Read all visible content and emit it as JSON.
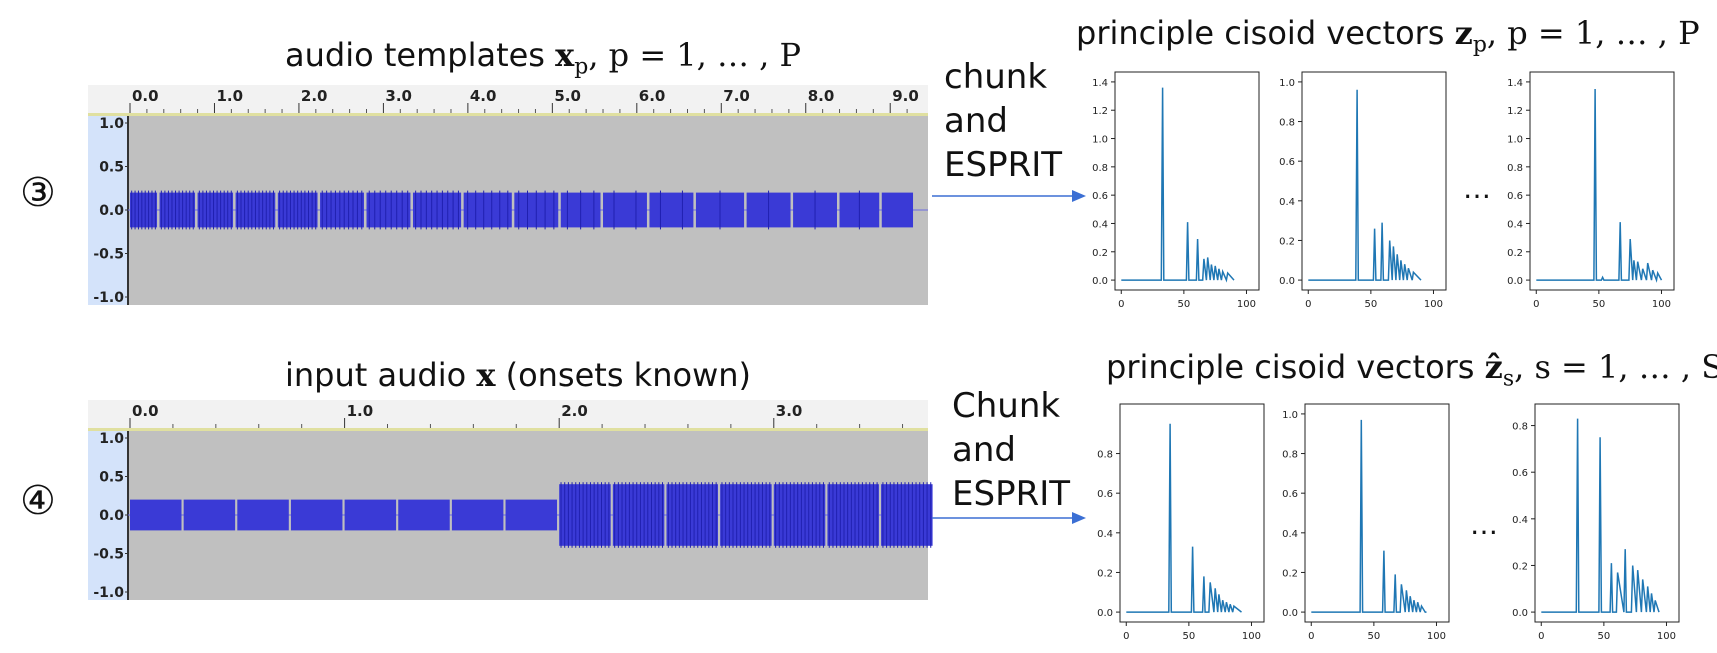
{
  "row1": {
    "step": "③",
    "left_title": {
      "text": "audio templates ",
      "vec": "x",
      "sub": "p",
      "rest": ", p = 1, … , P"
    },
    "process_lines": [
      "chunk",
      "and",
      "ESPRIT"
    ],
    "right_title": {
      "text": "principle cisoid vectors ",
      "vec": "z",
      "sub": "p",
      "rest": ", p = 1, … , P"
    },
    "timeline": {
      "ticks": [
        "0.0",
        "1.0",
        "2.0",
        "3.0",
        "4.0",
        "5.0",
        "6.0",
        "7.0",
        "8.0",
        "9.0"
      ],
      "xmax": 9.4
    },
    "amp_ticks": [
      "1.0",
      "0.5",
      "0.0",
      "-0.5",
      "-1.0"
    ],
    "ellipsis": "…",
    "charts": [
      {
        "ylim": [
          0,
          1.4
        ],
        "yticks": [
          "0.0",
          "0.2",
          "0.4",
          "0.6",
          "0.8",
          "1.0",
          "1.2",
          "1.4"
        ],
        "xticks": [
          "0",
          "50",
          "100"
        ]
      },
      {
        "ylim": [
          0,
          1.0
        ],
        "yticks": [
          "0.0",
          "0.2",
          "0.4",
          "0.6",
          "0.8",
          "1.0"
        ],
        "xticks": [
          "0",
          "50",
          "100"
        ]
      },
      {
        "ylim": [
          0,
          1.4
        ],
        "yticks": [
          "0.0",
          "0.2",
          "0.4",
          "0.6",
          "0.8",
          "1.0",
          "1.2",
          "1.4"
        ],
        "xticks": [
          "0",
          "50",
          "100"
        ]
      }
    ]
  },
  "row2": {
    "step": "④",
    "left_title": {
      "text": "input audio ",
      "vec": "x",
      "rest": " (onsets known)"
    },
    "process_lines": [
      "Chunk",
      "and",
      "ESPRIT"
    ],
    "right_title": {
      "text": "principle cisoid vectors ",
      "vec": "ẑ",
      "sub": "s",
      "rest": ", s = 1, … , S"
    },
    "timeline": {
      "ticks": [
        "0.0",
        "1.0",
        "2.0",
        "3.0"
      ],
      "xmax": 3.7
    },
    "amp_ticks": [
      "1.0",
      "0.5",
      "0.0",
      "-0.5",
      "-1.0"
    ],
    "ellipsis": "…",
    "charts": [
      {
        "ylim": [
          0,
          1.0
        ],
        "yticks": [
          "0.0",
          "0.2",
          "0.4",
          "0.6",
          "0.8"
        ],
        "xticks": [
          "0",
          "50",
          "100"
        ]
      },
      {
        "ylim": [
          0,
          1.0
        ],
        "yticks": [
          "0.0",
          "0.2",
          "0.4",
          "0.6",
          "0.8",
          "1.0"
        ],
        "xticks": [
          "0",
          "50",
          "100"
        ]
      },
      {
        "ylim": [
          0,
          0.85
        ],
        "yticks": [
          "0.0",
          "0.2",
          "0.4",
          "0.6",
          "0.8"
        ],
        "xticks": [
          "0",
          "50",
          "100"
        ]
      }
    ]
  },
  "colors": {
    "wave": "#3a3ad6",
    "track_bg": "#c0c0c0",
    "ruler_bg": "#f2f2f2",
    "amp_bg": "#d4e3fa",
    "plot_line": "#1f77b4",
    "arrow": "#3b6fd4"
  },
  "chart_data": [
    {
      "type": "line",
      "x": [
        0,
        32,
        33,
        34,
        52,
        53,
        54,
        60,
        61,
        62,
        65,
        66,
        68,
        69,
        71,
        72,
        74,
        75,
        77,
        78,
        80,
        81,
        84,
        85,
        90
      ],
      "y": [
        0,
        0,
        1.36,
        0,
        0,
        0.41,
        0,
        0,
        0.29,
        0,
        0,
        0.15,
        0,
        0.16,
        0,
        0.11,
        0,
        0.1,
        0,
        0.08,
        0,
        0.06,
        0,
        0.05,
        0
      ],
      "xlim": [
        -5,
        110
      ],
      "ylim": [
        0,
        1.4
      ]
    },
    {
      "type": "line",
      "x": [
        0,
        38,
        39,
        40,
        52,
        53,
        54,
        58,
        59,
        60,
        64,
        65,
        67,
        68,
        70,
        71,
        73,
        74,
        76,
        77,
        79,
        80,
        83,
        84,
        90
      ],
      "y": [
        0,
        0,
        0.96,
        0,
        0,
        0.26,
        0,
        0,
        0.29,
        0,
        0,
        0.2,
        0,
        0.17,
        0,
        0.13,
        0,
        0.1,
        0,
        0.08,
        0,
        0.06,
        0,
        0.04,
        0
      ],
      "xlim": [
        -5,
        110
      ],
      "ylim": [
        0,
        1.0
      ]
    },
    {
      "type": "line",
      "x": [
        0,
        46,
        47,
        48,
        52,
        53,
        54,
        66,
        67,
        68,
        74,
        75,
        77,
        78,
        80,
        81,
        84,
        85,
        88,
        89,
        92,
        93,
        96,
        97,
        100
      ],
      "y": [
        0,
        0,
        1.35,
        0,
        0,
        0.02,
        0,
        0,
        0.41,
        0,
        0,
        0.29,
        0,
        0.14,
        0,
        0.13,
        0,
        0.08,
        0,
        0.12,
        0,
        0.07,
        0,
        0.05,
        0
      ],
      "xlim": [
        -5,
        110
      ],
      "ylim": [
        0,
        1.4
      ]
    },
    {
      "type": "line",
      "x": [
        0,
        34,
        35,
        36,
        52,
        53,
        54,
        61,
        62,
        63,
        66,
        67,
        70,
        71,
        73,
        74,
        76,
        77,
        79,
        80,
        82,
        83,
        85,
        86,
        92
      ],
      "y": [
        0,
        0,
        0.95,
        0,
        0,
        0.33,
        0,
        0,
        0.18,
        0,
        0,
        0.15,
        0,
        0.12,
        0,
        0.09,
        0,
        0.06,
        0,
        0.05,
        0,
        0.04,
        0,
        0.03,
        0
      ],
      "xlim": [
        -5,
        110
      ],
      "ylim": [
        0,
        1.0
      ]
    },
    {
      "type": "line",
      "x": [
        0,
        39,
        40,
        41,
        57,
        58,
        59,
        66,
        67,
        68,
        71,
        72,
        75,
        76,
        78,
        79,
        81,
        82,
        84,
        85,
        87,
        88,
        91,
        92
      ],
      "y": [
        0,
        0,
        0.97,
        0,
        0,
        0.31,
        0,
        0,
        0.19,
        0,
        0,
        0.14,
        0,
        0.11,
        0,
        0.08,
        0,
        0.06,
        0,
        0.05,
        0,
        0.03,
        0,
        0
      ],
      "xlim": [
        -5,
        110
      ],
      "ylim": [
        0,
        1.0
      ]
    },
    {
      "type": "line",
      "x": [
        0,
        28,
        29,
        30,
        46,
        47,
        48,
        55,
        56,
        57,
        60,
        61,
        66,
        67,
        68,
        72,
        73,
        76,
        77,
        80,
        81,
        84,
        85,
        87,
        88,
        90,
        91,
        94
      ],
      "y": [
        0,
        0,
        0.83,
        0,
        0,
        0.75,
        0,
        0,
        0.21,
        0,
        0,
        0.17,
        0,
        0.27,
        0,
        0,
        0.2,
        0,
        0.18,
        0,
        0.14,
        0,
        0.11,
        0,
        0.08,
        0,
        0.05,
        0
      ],
      "xlim": [
        -5,
        110
      ],
      "ylim": [
        0,
        0.85
      ]
    }
  ]
}
